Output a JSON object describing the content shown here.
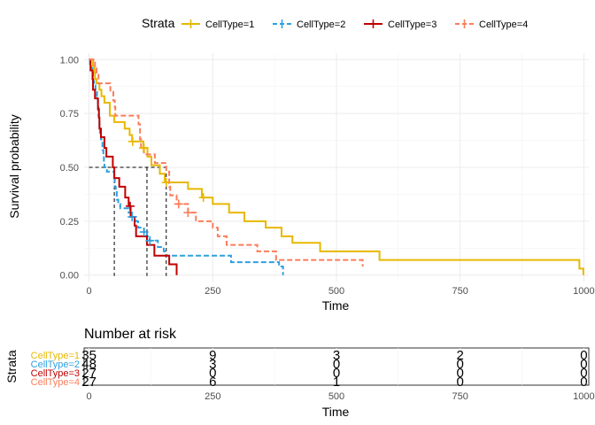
{
  "chart_data": [
    {
      "type": "line",
      "subtype": "kaplan-meier",
      "ylabel": "Survival probability",
      "xlabel": "Time",
      "xlim": [
        -10,
        1010
      ],
      "ylim": [
        -0.03,
        1.03
      ],
      "x_ticks": [
        0,
        250,
        500,
        750,
        1000
      ],
      "y_ticks": [
        0,
        0.25,
        0.5,
        0.75,
        1.0
      ],
      "y_tick_labels": [
        "0.00",
        "0.25",
        "0.50",
        "0.75",
        "1.00"
      ],
      "grid": true,
      "legend": {
        "title": "Strata",
        "position": "top"
      },
      "median_line": {
        "y": 0.5,
        "x_values": [
          51,
          117,
          156
        ]
      },
      "series": [
        {
          "name": "CellType=1",
          "color": "#E7B800",
          "dash": "solid",
          "steps": [
            [
              0,
              1.0
            ],
            [
              8,
              0.97
            ],
            [
              11,
              0.94
            ],
            [
              12,
              0.91
            ],
            [
              15,
              0.89
            ],
            [
              21,
              0.86
            ],
            [
              25,
              0.83
            ],
            [
              31,
              0.8
            ],
            [
              42,
              0.74
            ],
            [
              51,
              0.71
            ],
            [
              72,
              0.68
            ],
            [
              82,
              0.65
            ],
            [
              87,
              0.62
            ],
            [
              110,
              0.59
            ],
            [
              118,
              0.55
            ],
            [
              126,
              0.51
            ],
            [
              143,
              0.47
            ],
            [
              153,
              0.43
            ],
            [
              200,
              0.4
            ],
            [
              228,
              0.36
            ],
            [
              250,
              0.33
            ],
            [
              283,
              0.29
            ],
            [
              314,
              0.25
            ],
            [
              357,
              0.22
            ],
            [
              389,
              0.18
            ],
            [
              411,
              0.15
            ],
            [
              467,
              0.11
            ],
            [
              587,
              0.07
            ],
            [
              991,
              0.03
            ],
            [
              999,
              0.0
            ]
          ],
          "censor_times": [
            88,
            110,
            231,
            111,
            156
          ]
        },
        {
          "name": "CellType=2",
          "color": "#2E9FDF",
          "dash": "dashed",
          "steps": [
            [
              0,
              1.0
            ],
            [
              2,
              0.98
            ],
            [
              4,
              0.96
            ],
            [
              7,
              0.94
            ],
            [
              8,
              0.9
            ],
            [
              10,
              0.88
            ],
            [
              13,
              0.85
            ],
            [
              16,
              0.83
            ],
            [
              18,
              0.79
            ],
            [
              19,
              0.74
            ],
            [
              20,
              0.72
            ],
            [
              21,
              0.69
            ],
            [
              22,
              0.65
            ],
            [
              24,
              0.63
            ],
            [
              27,
              0.58
            ],
            [
              29,
              0.56
            ],
            [
              30,
              0.52
            ],
            [
              31,
              0.5
            ],
            [
              36,
              0.48
            ],
            [
              51,
              0.45
            ],
            [
              52,
              0.41
            ],
            [
              54,
              0.39
            ],
            [
              56,
              0.35
            ],
            [
              59,
              0.33
            ],
            [
              63,
              0.31
            ],
            [
              80,
              0.29
            ],
            [
              87,
              0.27
            ],
            [
              95,
              0.25
            ],
            [
              99,
              0.22
            ],
            [
              111,
              0.2
            ],
            [
              117,
              0.18
            ],
            [
              122,
              0.16
            ],
            [
              139,
              0.13
            ],
            [
              151,
              0.11
            ],
            [
              153,
              0.09
            ],
            [
              287,
              0.06
            ],
            [
              384,
              0.04
            ],
            [
              392,
              0.0
            ]
          ],
          "censor_times": [
            87,
            111,
            123
          ]
        },
        {
          "name": "CellType=3",
          "color": "#C00000",
          "dash": "solid",
          "steps": [
            [
              0,
              1.0
            ],
            [
              3,
              0.95
            ],
            [
              7,
              0.91
            ],
            [
              8,
              0.86
            ],
            [
              12,
              0.82
            ],
            [
              18,
              0.77
            ],
            [
              20,
              0.73
            ],
            [
              21,
              0.68
            ],
            [
              24,
              0.64
            ],
            [
              31,
              0.59
            ],
            [
              35,
              0.55
            ],
            [
              48,
              0.5
            ],
            [
              51,
              0.45
            ],
            [
              61,
              0.41
            ],
            [
              73,
              0.36
            ],
            [
              80,
              0.32
            ],
            [
              84,
              0.27
            ],
            [
              92,
              0.23
            ],
            [
              95,
              0.18
            ],
            [
              117,
              0.14
            ],
            [
              132,
              0.09
            ],
            [
              162,
              0.05
            ],
            [
              177,
              0.0
            ]
          ],
          "censor_times": [
            83
          ]
        },
        {
          "name": "CellType=4",
          "color": "#FC7D5B",
          "dash": "dashed",
          "steps": [
            [
              0,
              1.0
            ],
            [
              12,
              0.96
            ],
            [
              15,
              0.93
            ],
            [
              19,
              0.89
            ],
            [
              43,
              0.85
            ],
            [
              49,
              0.81
            ],
            [
              52,
              0.78
            ],
            [
              53,
              0.74
            ],
            [
              100,
              0.7
            ],
            [
              103,
              0.63
            ],
            [
              105,
              0.59
            ],
            [
              111,
              0.56
            ],
            [
              133,
              0.52
            ],
            [
              156,
              0.48
            ],
            [
              162,
              0.41
            ],
            [
              164,
              0.37
            ],
            [
              177,
              0.33
            ],
            [
              200,
              0.29
            ],
            [
              216,
              0.25
            ],
            [
              250,
              0.22
            ],
            [
              260,
              0.18
            ],
            [
              278,
              0.14
            ],
            [
              340,
              0.11
            ],
            [
              378,
              0.07
            ],
            [
              553,
              0.04
            ]
          ],
          "censor_times": [
            181,
            200
          ]
        }
      ]
    },
    {
      "type": "table",
      "title": "Number at risk",
      "ylabel": "Strata",
      "xlabel": "Time",
      "x_ticks": [
        0,
        250,
        500,
        750,
        1000
      ],
      "rows": [
        {
          "name": "CellType=1",
          "color": "#E7B800",
          "values": [
            "35",
            "9",
            "3",
            "2",
            "0"
          ]
        },
        {
          "name": "CellType=2",
          "color": "#2E9FDF",
          "values": [
            "48",
            "3",
            "0",
            "0",
            "0"
          ]
        },
        {
          "name": "CellType=3",
          "color": "#C00000",
          "values": [
            "27",
            "0",
            "0",
            "0",
            "0"
          ]
        },
        {
          "name": "CellType=4",
          "color": "#FC7D5B",
          "values": [
            "27",
            "6",
            "1",
            "0",
            "0"
          ]
        }
      ]
    }
  ]
}
